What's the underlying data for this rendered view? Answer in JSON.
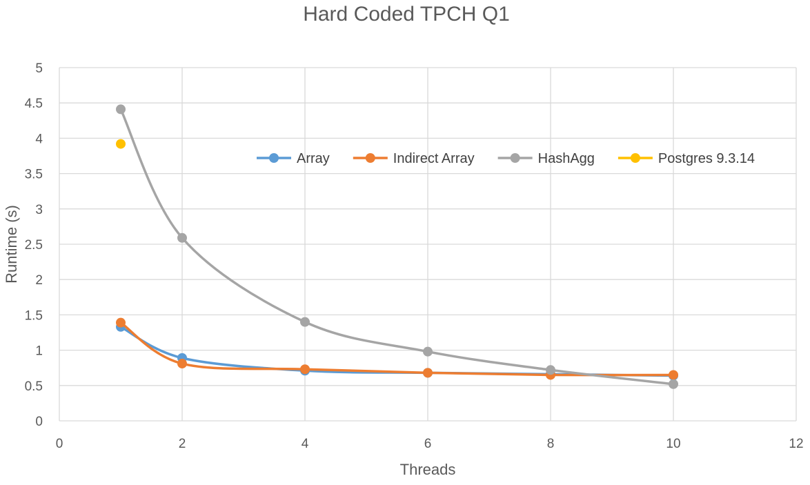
{
  "chart_data": {
    "type": "scatter",
    "title": "Hard Coded TPCH Q1",
    "xlabel": "Threads",
    "ylabel": "Runtime (s)",
    "xlim": [
      0,
      12
    ],
    "ylim": [
      0,
      5
    ],
    "xticks": [
      0,
      2,
      4,
      6,
      8,
      10,
      12
    ],
    "yticks": [
      0,
      0.5,
      1,
      1.5,
      2,
      2.5,
      3,
      3.5,
      4,
      4.5,
      5
    ],
    "grid": true,
    "smooth_lines": true,
    "legend_position": "inside-top-right",
    "series": [
      {
        "name": "Array",
        "color": "#5B9BD5",
        "x": [
          1,
          2,
          4,
          6,
          8,
          10
        ],
        "y": [
          1.33,
          0.89,
          0.71,
          0.68,
          0.66,
          0.64
        ]
      },
      {
        "name": "Indirect Array",
        "color": "#ED7D31",
        "x": [
          1,
          2,
          4,
          6,
          8,
          10
        ],
        "y": [
          1.39,
          0.81,
          0.73,
          0.68,
          0.65,
          0.65
        ]
      },
      {
        "name": "HashAgg",
        "color": "#A5A5A5",
        "x": [
          1,
          2,
          4,
          6,
          8,
          10
        ],
        "y": [
          4.41,
          2.59,
          1.4,
          0.98,
          0.72,
          0.52
        ]
      },
      {
        "name": "Postgres 9.3.14",
        "color": "#FFC000",
        "x": [
          1
        ],
        "y": [
          3.92
        ]
      }
    ]
  }
}
